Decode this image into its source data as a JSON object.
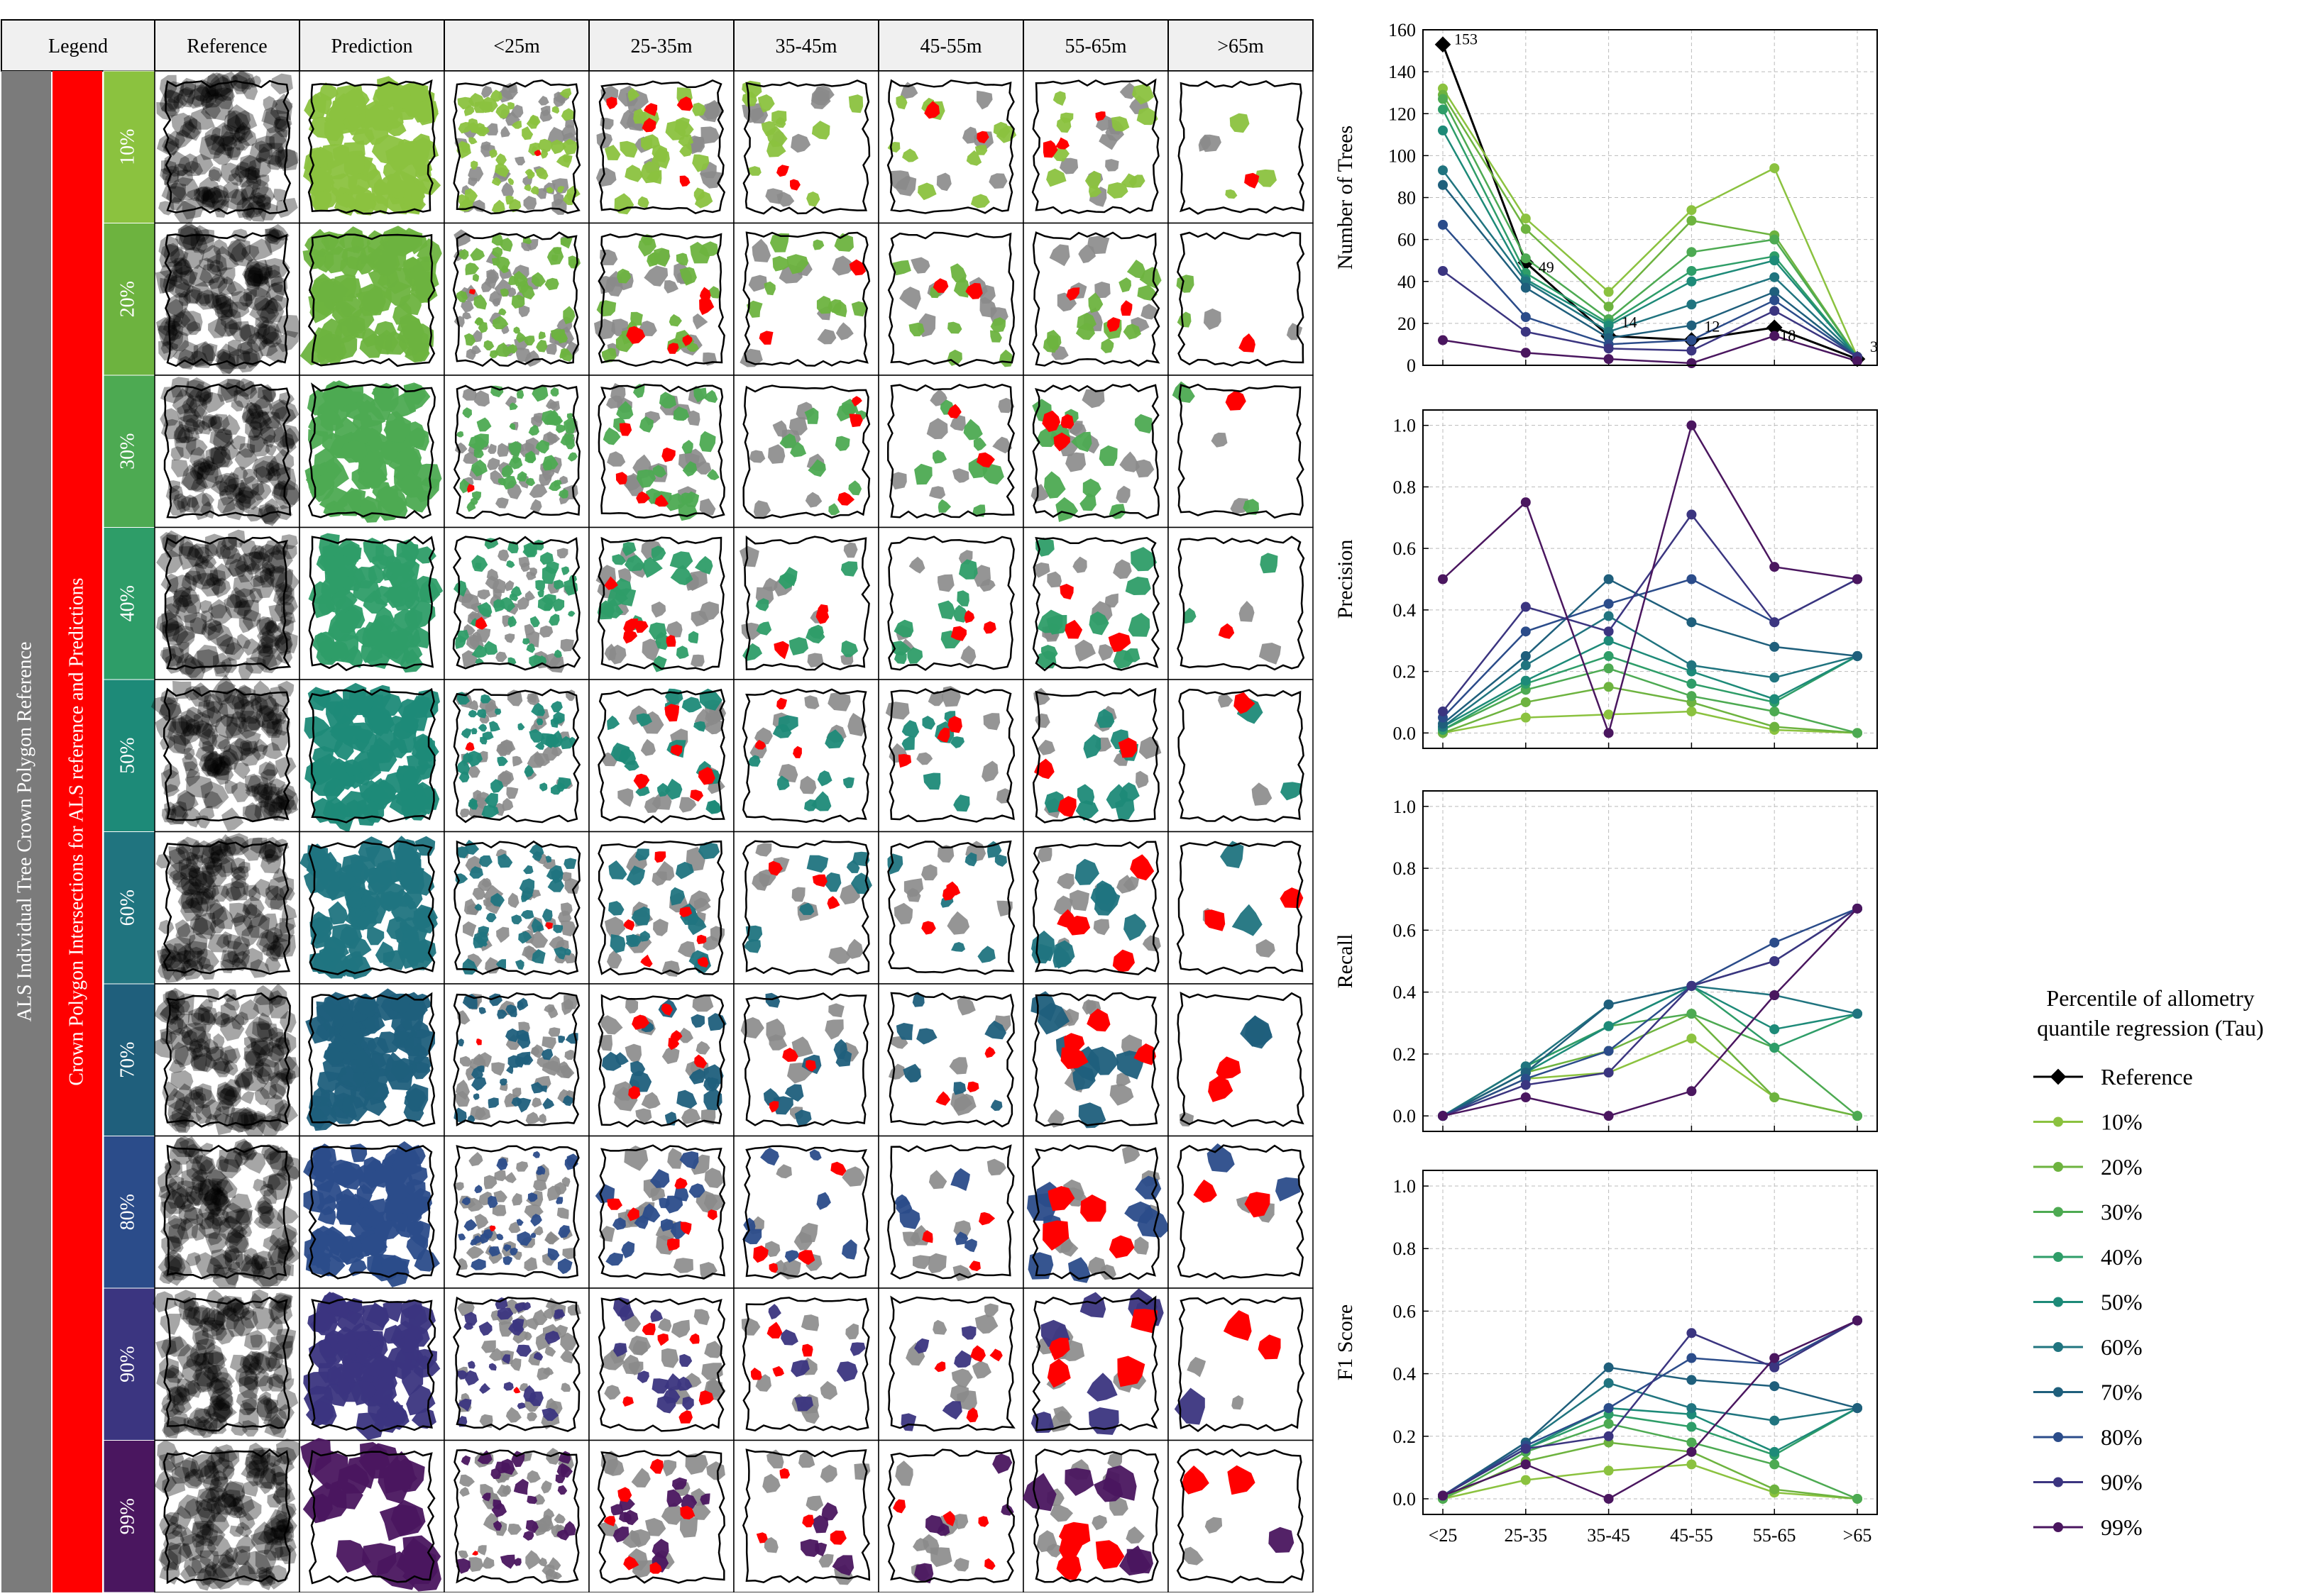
{
  "legend_header": "Legend",
  "column_headers": [
    "Reference",
    "Prediction",
    "<25m",
    "25-35m",
    "35-45m",
    "45-55m",
    "55-65m",
    ">65m"
  ],
  "side_label_gray": "ALS Individual Tree Crown Polygon Reference",
  "side_label_red": "Crown Polygon Intersections for ALS  reference and Predictions",
  "row_labels": [
    "10%",
    "20%",
    "30%",
    "40%",
    "50%",
    "60%",
    "70%",
    "80%",
    "90%",
    "99%"
  ],
  "colors": {
    "reference": "#000000",
    "tau": [
      "#8bc23f",
      "#6db33f",
      "#4daa52",
      "#2e9d68",
      "#1d8a78",
      "#20747f",
      "#1f5f7c",
      "#2b4c8a",
      "#3b3580",
      "#4a165f"
    ],
    "gray_band": "#7b7b7b",
    "red_band": "#ff0000",
    "intersection": "#ff0000",
    "reference_crown": "#8a8a8a"
  },
  "legend": {
    "title_line1": "Percentile of allometry",
    "title_line2": "quantile regression (Tau)",
    "entries": [
      "Reference",
      "10%",
      "20%",
      "30%",
      "40%",
      "50%",
      "60%",
      "70%",
      "80%",
      "90%",
      "99%"
    ]
  },
  "chart_data": [
    {
      "type": "line",
      "ylabel": "Number of Trees",
      "categories": [
        "<25",
        "25-35",
        "35-45",
        "45-55",
        "55-65",
        ">65"
      ],
      "ylim": [
        0,
        160
      ],
      "yticks": [
        0,
        20,
        40,
        60,
        80,
        100,
        120,
        140,
        160
      ],
      "grid": true,
      "annotations": [
        "153",
        "49",
        "14",
        "12",
        "18",
        "3"
      ],
      "series": [
        {
          "name": "Reference",
          "values": [
            153,
            49,
            14,
            12,
            18,
            3
          ]
        },
        {
          "name": "10%",
          "values": [
            132,
            70,
            35,
            74,
            94,
            4
          ]
        },
        {
          "name": "20%",
          "values": [
            129,
            65,
            28,
            69,
            62,
            4
          ]
        },
        {
          "name": "30%",
          "values": [
            127,
            51,
            22,
            54,
            60,
            4
          ]
        },
        {
          "name": "40%",
          "values": [
            122,
            44,
            20,
            45,
            52,
            4
          ]
        },
        {
          "name": "50%",
          "values": [
            112,
            41,
            19,
            40,
            50,
            4
          ]
        },
        {
          "name": "60%",
          "values": [
            93,
            40,
            16,
            29,
            42,
            4
          ]
        },
        {
          "name": "70%",
          "values": [
            86,
            37,
            13,
            19,
            35,
            4
          ]
        },
        {
          "name": "80%",
          "values": [
            67,
            23,
            10,
            12,
            31,
            4
          ]
        },
        {
          "name": "90%",
          "values": [
            45,
            16,
            8,
            7,
            26,
            4
          ]
        },
        {
          "name": "99%",
          "values": [
            12,
            6,
            3,
            1,
            14,
            2
          ]
        }
      ]
    },
    {
      "type": "line",
      "ylabel": "Precision",
      "categories": [
        "<25",
        "25-35",
        "35-45",
        "45-55",
        "55-65",
        ">65"
      ],
      "ylim": [
        -0.05,
        1.05
      ],
      "yticks": [
        0.0,
        0.2,
        0.4,
        0.6,
        0.8,
        1.0
      ],
      "grid": true,
      "series": [
        {
          "name": "10%",
          "values": [
            0.0,
            0.05,
            0.06,
            0.07,
            0.01,
            0.0
          ]
        },
        {
          "name": "20%",
          "values": [
            0.0,
            0.1,
            0.15,
            0.1,
            0.02,
            0.0
          ]
        },
        {
          "name": "30%",
          "values": [
            0.01,
            0.14,
            0.21,
            0.12,
            0.07,
            0.0
          ]
        },
        {
          "name": "40%",
          "values": [
            0.01,
            0.16,
            0.25,
            0.16,
            0.1,
            0.25
          ]
        },
        {
          "name": "50%",
          "values": [
            0.02,
            0.17,
            0.3,
            0.2,
            0.11,
            0.25
          ]
        },
        {
          "name": "60%",
          "values": [
            0.02,
            0.22,
            0.38,
            0.22,
            0.18,
            0.25
          ]
        },
        {
          "name": "70%",
          "values": [
            0.03,
            0.25,
            0.5,
            0.36,
            0.28,
            0.25
          ]
        },
        {
          "name": "80%",
          "values": [
            0.05,
            0.33,
            0.42,
            0.5,
            0.36,
            0.5
          ]
        },
        {
          "name": "90%",
          "values": [
            0.07,
            0.41,
            0.33,
            0.71,
            0.36,
            0.5
          ]
        },
        {
          "name": "99%",
          "values": [
            0.5,
            0.75,
            0.0,
            1.0,
            0.54,
            0.5
          ]
        }
      ]
    },
    {
      "type": "line",
      "ylabel": "Recall",
      "categories": [
        "<25",
        "25-35",
        "35-45",
        "45-55",
        "55-65",
        ">65"
      ],
      "ylim": [
        -0.05,
        1.05
      ],
      "yticks": [
        0.0,
        0.2,
        0.4,
        0.6,
        0.8,
        1.0
      ],
      "grid": true,
      "series": [
        {
          "name": "10%",
          "values": [
            0.0,
            0.12,
            0.14,
            0.25,
            0.06,
            0.0
          ]
        },
        {
          "name": "20%",
          "values": [
            0.0,
            0.14,
            0.21,
            0.33,
            0.06,
            0.0
          ]
        },
        {
          "name": "30%",
          "values": [
            0.0,
            0.16,
            0.29,
            0.33,
            0.22,
            0.0
          ]
        },
        {
          "name": "40%",
          "values": [
            0.0,
            0.16,
            0.29,
            0.42,
            0.22,
            0.33
          ]
        },
        {
          "name": "50%",
          "values": [
            0.0,
            0.14,
            0.29,
            0.42,
            0.28,
            0.33
          ]
        },
        {
          "name": "60%",
          "values": [
            0.0,
            0.16,
            0.36,
            0.42,
            0.39,
            0.33
          ]
        },
        {
          "name": "70%",
          "values": [
            0.0,
            0.14,
            0.36,
            0.42,
            0.5,
            0.67
          ]
        },
        {
          "name": "80%",
          "values": [
            0.0,
            0.12,
            0.21,
            0.42,
            0.56,
            0.67
          ]
        },
        {
          "name": "90%",
          "values": [
            0.0,
            0.1,
            0.14,
            0.42,
            0.5,
            0.67
          ]
        },
        {
          "name": "99%",
          "values": [
            0.0,
            0.06,
            0.0,
            0.08,
            0.39,
            0.67
          ]
        }
      ]
    },
    {
      "type": "line",
      "ylabel": "F1 Score",
      "categories": [
        "<25",
        "25-35",
        "35-45",
        "45-55",
        "55-65",
        ">65"
      ],
      "ylim": [
        -0.05,
        1.05
      ],
      "yticks": [
        0.0,
        0.2,
        0.4,
        0.6,
        0.8,
        1.0
      ],
      "grid": true,
      "series": [
        {
          "name": "10%",
          "values": [
            0.0,
            0.06,
            0.09,
            0.11,
            0.02,
            0.0
          ]
        },
        {
          "name": "20%",
          "values": [
            0.0,
            0.12,
            0.18,
            0.15,
            0.03,
            0.0
          ]
        },
        {
          "name": "30%",
          "values": [
            0.0,
            0.15,
            0.24,
            0.18,
            0.11,
            0.0
          ]
        },
        {
          "name": "40%",
          "values": [
            0.01,
            0.16,
            0.27,
            0.23,
            0.14,
            0.29
          ]
        },
        {
          "name": "50%",
          "values": [
            0.01,
            0.16,
            0.29,
            0.27,
            0.15,
            0.29
          ]
        },
        {
          "name": "60%",
          "values": [
            0.01,
            0.18,
            0.37,
            0.29,
            0.25,
            0.29
          ]
        },
        {
          "name": "70%",
          "values": [
            0.01,
            0.18,
            0.42,
            0.38,
            0.36,
            0.29
          ]
        },
        {
          "name": "80%",
          "values": [
            0.01,
            0.17,
            0.29,
            0.45,
            0.43,
            0.57
          ]
        },
        {
          "name": "90%",
          "values": [
            0.01,
            0.16,
            0.2,
            0.53,
            0.42,
            0.57
          ]
        },
        {
          "name": "99%",
          "values": [
            0.01,
            0.11,
            0.0,
            0.15,
            0.45,
            0.57
          ]
        }
      ]
    }
  ]
}
